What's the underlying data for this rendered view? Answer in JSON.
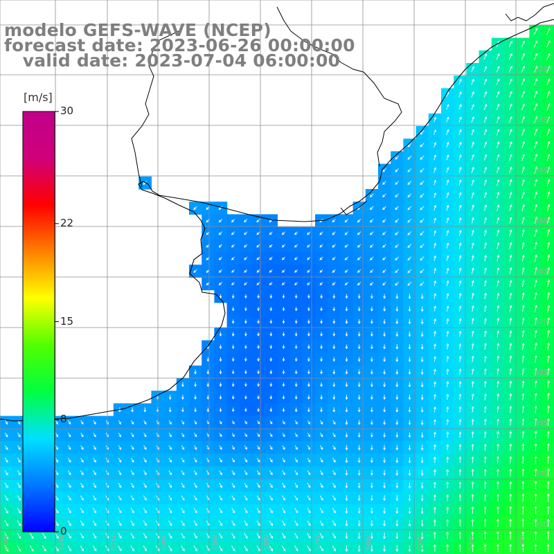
{
  "title": {
    "model": "modelo GEFS-WAVE (NCEP)",
    "forecast": "forecast date: 2023-06-26 00:00:00",
    "valid": "   valid date: 2023-07-04 06:00:00"
  },
  "colorbar": {
    "unit": "[m/s]",
    "ticks": [
      "30",
      "22",
      "15",
      "8",
      "0"
    ],
    "tick_values": [
      30,
      22,
      15,
      8,
      0
    ],
    "min": 0,
    "max": 30,
    "colors": [
      "#0000ff",
      "#0078ff",
      "#00e0ff",
      "#00ff40",
      "#50ff00",
      "#ffff00",
      "#ff8000",
      "#ff0000",
      "#d0007a",
      "#c0008a"
    ]
  },
  "map": {
    "land_color": "#ffffff",
    "grid_color": "#8c8c8c",
    "coast_color": "#000000",
    "arrow_color": "#ffffff",
    "lat_labels": [
      "32S",
      "33S",
      "34S",
      "35S",
      "36S",
      "37S",
      "38S",
      "39S",
      "40S",
      "41S"
    ],
    "lon_labels": [
      "63W",
      "62W",
      "61W",
      "60W",
      "59W",
      "58W",
      "57W",
      "56W",
      "55W",
      "54W",
      "53W"
    ],
    "wind_speed_range_ms": [
      3,
      11
    ]
  }
}
